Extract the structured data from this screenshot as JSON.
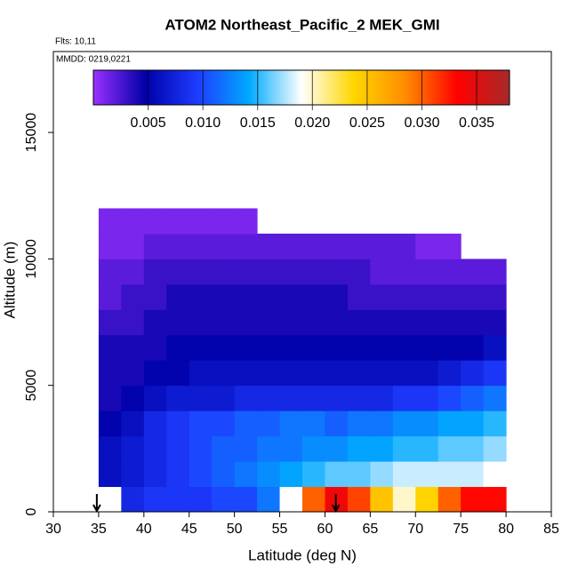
{
  "chart_data": {
    "type": "heatmap",
    "title": "ATOM2 Northeast_Pacific_2 MEK_GMI",
    "subtitle": "Flts: 10,11",
    "annotation": "MMDD: 0219,0221",
    "xlabel": "Latitude (deg N)",
    "ylabel": "Altitude (m)",
    "xlim": [
      30,
      85
    ],
    "xticks": [
      30,
      35,
      40,
      45,
      50,
      55,
      60,
      65,
      70,
      75,
      80,
      85
    ],
    "ylim": [
      0,
      18200
    ],
    "yticks": [
      0,
      5000,
      10000,
      15000
    ],
    "x_edges": [
      35,
      37.5,
      40,
      42.5,
      45,
      47.5,
      50,
      52.5,
      55,
      57.5,
      60,
      62.5,
      65,
      67.5,
      70,
      72.5,
      75,
      77.5,
      80
    ],
    "y_edges": [
      0,
      1000,
      2000,
      3000,
      4000,
      5000,
      6000,
      7000,
      8000,
      9000,
      10000,
      11000,
      12000
    ],
    "values": [
      [
        null,
        0.008,
        0.009,
        0.009,
        0.009,
        0.01,
        0.01,
        0.012,
        0.019,
        0.03,
        0.034,
        0.031,
        0.025,
        0.02,
        0.024,
        0.03,
        0.033,
        0.033
      ],
      [
        0.006,
        0.007,
        0.008,
        0.009,
        0.01,
        0.011,
        0.012,
        0.013,
        0.014,
        0.015,
        0.016,
        0.016,
        0.017,
        0.018,
        0.018,
        0.018,
        0.018,
        0.019
      ],
      [
        0.006,
        0.007,
        0.008,
        0.009,
        0.01,
        0.011,
        0.011,
        0.012,
        0.012,
        0.013,
        0.013,
        0.014,
        0.014,
        0.015,
        0.015,
        0.016,
        0.016,
        0.017
      ],
      [
        0.005,
        0.006,
        0.008,
        0.009,
        0.01,
        0.01,
        0.011,
        0.011,
        0.012,
        0.012,
        0.011,
        0.012,
        0.012,
        0.013,
        0.013,
        0.014,
        0.014,
        0.015
      ],
      [
        0.004,
        0.005,
        0.006,
        0.007,
        0.007,
        0.007,
        0.008,
        0.008,
        0.008,
        0.008,
        0.008,
        0.008,
        0.008,
        0.009,
        0.009,
        0.01,
        0.011,
        0.012
      ],
      [
        0.004,
        0.004,
        0.005,
        0.005,
        0.006,
        0.006,
        0.006,
        0.006,
        0.006,
        0.006,
        0.006,
        0.006,
        0.006,
        0.006,
        0.006,
        0.007,
        0.008,
        0.009
      ],
      [
        0.004,
        0.004,
        0.004,
        0.005,
        0.005,
        0.005,
        0.005,
        0.005,
        0.005,
        0.005,
        0.005,
        0.005,
        0.005,
        0.005,
        0.005,
        0.005,
        0.005,
        0.006
      ],
      [
        0.003,
        0.003,
        0.004,
        0.004,
        0.004,
        0.004,
        0.004,
        0.004,
        0.004,
        0.004,
        0.004,
        0.004,
        0.004,
        0.004,
        0.004,
        0.004,
        0.004,
        0.004
      ],
      [
        0.002,
        0.003,
        0.003,
        0.004,
        0.004,
        0.004,
        0.004,
        0.004,
        0.004,
        0.004,
        0.004,
        0.003,
        0.003,
        0.003,
        0.003,
        0.003,
        0.003,
        0.003
      ],
      [
        0.002,
        0.002,
        0.003,
        0.003,
        0.003,
        0.003,
        0.003,
        0.003,
        0.003,
        0.003,
        0.003,
        0.003,
        0.002,
        0.002,
        0.002,
        0.002,
        0.002,
        0.002
      ],
      [
        0.001,
        0.001,
        0.002,
        0.002,
        0.002,
        0.002,
        0.002,
        0.002,
        0.002,
        0.002,
        0.002,
        0.002,
        0.002,
        0.002,
        0.001,
        0.001,
        null,
        null
      ],
      [
        0.001,
        0.001,
        0.001,
        0.001,
        0.001,
        0.001,
        0.001,
        null,
        null,
        null,
        null,
        null,
        null,
        null,
        null,
        null,
        null,
        null
      ]
    ],
    "zlim": [
      0,
      0.038
    ],
    "zticks": [
      0.005,
      {
        "value": 0.01,
        "label": "0.010"
      },
      0.015,
      {
        "value": 0.02,
        "label": "0.020"
      },
      0.025,
      {
        "value": 0.03,
        "label": "0.030"
      },
      0.035
    ],
    "colors": [
      "#9b30ff",
      "#0000a8",
      "#1e3cff",
      "#00aaff",
      "#ffffff",
      "#ffd700",
      "#ff8c00",
      "#ff0000",
      "#a52a2a"
    ],
    "arrows": [
      34.8,
      61.2
    ]
  }
}
